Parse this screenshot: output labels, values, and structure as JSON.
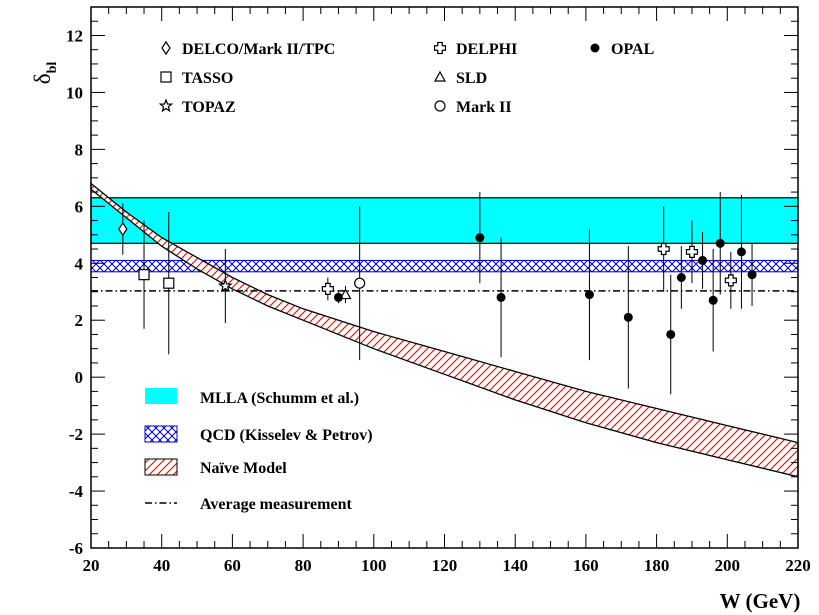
{
  "chart_data": {
    "type": "scatter",
    "xlabel": "W (GeV)",
    "ylabel_main": "δ",
    "ylabel_sub": "bl",
    "xlim": [
      20,
      220
    ],
    "ylim": [
      -6,
      13
    ],
    "x_ticks": [
      20,
      40,
      60,
      80,
      100,
      120,
      140,
      160,
      180,
      200,
      220
    ],
    "y_ticks": [
      -6,
      -4,
      -2,
      0,
      2,
      4,
      6,
      8,
      10,
      12
    ],
    "grid": false,
    "colors": {
      "mlla": "#00ffff",
      "qcd_hatch": "#0000cc",
      "naive_hatch": "#ff0000",
      "ink": "#000000"
    },
    "series": [
      {
        "name": "DELCO/Mark II/TPC",
        "marker": "diamond-open",
        "points": [
          {
            "x": 29,
            "y": 5.2,
            "err": 0.9
          }
        ]
      },
      {
        "name": "TASSO",
        "marker": "square-open",
        "points": [
          {
            "x": 35,
            "y": 3.6,
            "err": 1.9
          },
          {
            "x": 42,
            "y": 3.3,
            "err": 2.5
          }
        ]
      },
      {
        "name": "TOPAZ",
        "marker": "star-open",
        "points": [
          {
            "x": 58,
            "y": 3.2,
            "err": 1.3
          }
        ]
      },
      {
        "name": "DELPHI",
        "marker": "cross-open",
        "points": [
          {
            "x": 87,
            "y": 3.1,
            "err": 0.4
          },
          {
            "x": 182,
            "y": 4.5,
            "err": 1.5
          },
          {
            "x": 190,
            "y": 4.4,
            "err": 1.1
          },
          {
            "x": 201,
            "y": 3.4,
            "err": 1.0
          }
        ]
      },
      {
        "name": "SLD",
        "marker": "triangle-open",
        "points": [
          {
            "x": 92,
            "y": 2.9,
            "err": 0.3
          }
        ]
      },
      {
        "name": "Mark II",
        "marker": "circle-open",
        "points": [
          {
            "x": 96,
            "y": 3.3,
            "err": 2.7
          }
        ]
      },
      {
        "name": "OPAL",
        "marker": "circle-filled",
        "points": [
          {
            "x": 90,
            "y": 2.8,
            "err": 0.2
          },
          {
            "x": 130,
            "y": 4.9,
            "err": 1.6
          },
          {
            "x": 136,
            "y": 2.8,
            "err": 2.1
          },
          {
            "x": 161,
            "y": 2.9,
            "err": 2.3
          },
          {
            "x": 172,
            "y": 2.1,
            "err": 2.5
          },
          {
            "x": 184,
            "y": 1.5,
            "err": 2.1
          },
          {
            "x": 187,
            "y": 3.5,
            "err": 1.1
          },
          {
            "x": 193,
            "y": 4.1,
            "err": 1.0
          },
          {
            "x": 196,
            "y": 2.7,
            "err": 1.8
          },
          {
            "x": 198,
            "y": 4.7,
            "err": 1.8
          },
          {
            "x": 204,
            "y": 4.4,
            "err": 2.0
          },
          {
            "x": 207,
            "y": 3.6,
            "err": 1.1
          }
        ]
      }
    ],
    "bands": [
      {
        "name": "MLLA (Schumm et al.)",
        "style": "solid-cyan",
        "y_low": 4.7,
        "y_high": 6.3
      },
      {
        "name": "QCD (Kisselev & Petrov)",
        "style": "blue-crosshatch",
        "y_low": 3.7,
        "y_high": 4.1
      },
      {
        "name": "Naïve Model",
        "style": "red-diagonal-hatch",
        "x": [
          20,
          30,
          40,
          50,
          60,
          70,
          80,
          100,
          120,
          140,
          160,
          180,
          200,
          220
        ],
        "y_low": [
          6.6,
          5.6,
          4.6,
          3.8,
          3.1,
          2.5,
          2.0,
          1.0,
          0.1,
          -0.8,
          -1.6,
          -2.3,
          -2.9,
          -3.5
        ],
        "y_high": [
          6.8,
          5.8,
          4.9,
          4.2,
          3.5,
          2.9,
          2.4,
          1.6,
          0.9,
          0.2,
          -0.5,
          -1.1,
          -1.7,
          -2.3
        ]
      }
    ],
    "average_line": {
      "name": "Average measurement",
      "y": 3.03
    },
    "legend_top": [
      {
        "label": "DELCO/Mark II/TPC",
        "marker": "diamond-open"
      },
      {
        "label": "TASSO",
        "marker": "square-open"
      },
      {
        "label": "TOPAZ",
        "marker": "star-open"
      },
      {
        "label": "DELPHI",
        "marker": "cross-open"
      },
      {
        "label": "SLD",
        "marker": "triangle-open"
      },
      {
        "label": "Mark II",
        "marker": "circle-open"
      },
      {
        "label": "OPAL",
        "marker": "circle-filled"
      }
    ],
    "legend_bottom": [
      {
        "label": "MLLA (Schumm et al.)",
        "swatch": "cyan"
      },
      {
        "label": "QCD (Kisselev & Petrov)",
        "swatch": "blue-crosshatch"
      },
      {
        "label": "Naïve Model",
        "swatch": "red-hatch"
      },
      {
        "label": "Average measurement",
        "swatch": "dash-dot"
      }
    ]
  }
}
